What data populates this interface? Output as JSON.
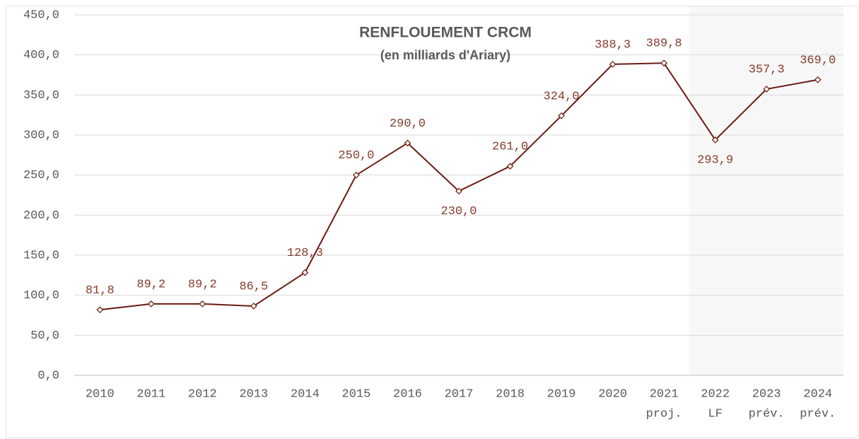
{
  "chart_data": {
    "type": "line",
    "title": "RENFLOUEMENT CRCM",
    "subtitle": "(en milliards d'Ariary)",
    "categories": [
      "2010",
      "2011",
      "2012",
      "2013",
      "2014",
      "2015",
      "2016",
      "2017",
      "2018",
      "2019",
      "2020",
      "2021",
      "2022",
      "2023",
      "2024"
    ],
    "category_notes": [
      null,
      null,
      null,
      null,
      null,
      null,
      null,
      null,
      null,
      null,
      null,
      "proj.",
      "LF",
      "prév.",
      "prév."
    ],
    "series": [
      {
        "name": "RENFLOUEMENT CRCM",
        "color": "#6a1b12",
        "values": [
          81.8,
          89.2,
          89.2,
          86.5,
          128.3,
          250.0,
          290.0,
          230.0,
          261.0,
          324.0,
          388.3,
          389.8,
          293.9,
          357.3,
          369.0
        ],
        "value_labels": [
          "81,8",
          "89,2",
          "89,2",
          "86,5",
          "128,3",
          "250,0",
          "290,0",
          "230,0",
          "261,0",
          "324,0",
          "388,3",
          "389,8",
          "293,9",
          "357,3",
          "369,0"
        ],
        "label_positions": [
          "above",
          "above",
          "above",
          "above",
          "above",
          "above",
          "above",
          "below",
          "above",
          "above",
          "above",
          "above",
          "below",
          "above",
          "above"
        ]
      }
    ],
    "ylim": [
      0,
      450
    ],
    "yticks": [
      {
        "value": 0,
        "label": "0,0"
      },
      {
        "value": 50,
        "label": "50,0"
      },
      {
        "value": 100,
        "label": "100,0"
      },
      {
        "value": 150,
        "label": "150,0"
      },
      {
        "value": 200,
        "label": "200,0"
      },
      {
        "value": 250,
        "label": "250,0"
      },
      {
        "value": 300,
        "label": "300,0"
      },
      {
        "value": 350,
        "label": "350,0"
      },
      {
        "value": 400,
        "label": "400,0"
      },
      {
        "value": 450,
        "label": "450,0"
      }
    ],
    "grid": true,
    "shaded_region": {
      "from": "2022",
      "to": "2024"
    }
  }
}
